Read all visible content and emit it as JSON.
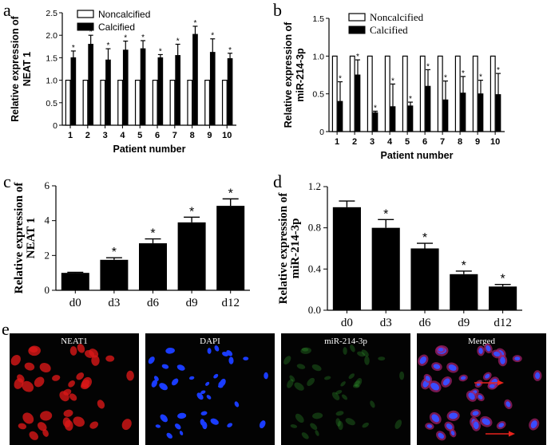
{
  "panels": {
    "a": {
      "letter": "a"
    },
    "b": {
      "letter": "b"
    },
    "c": {
      "letter": "c"
    },
    "d": {
      "letter": "d"
    },
    "e": {
      "letter": "e"
    }
  },
  "colors": {
    "noncalcified": "#ffffff",
    "calcified": "#000000",
    "axis": "#000000",
    "arrow": "#e8231c"
  },
  "chart_data": [
    {
      "id": "a",
      "type": "bar",
      "ylabel": "Relative expression of\nNEAT 1",
      "xlabel": "Patient number",
      "ylim": [
        0,
        2.5
      ],
      "yticks": [
        "0",
        "0.5",
        "1.0",
        "1.5",
        "2.0",
        "2.5"
      ],
      "ytick_values": [
        0,
        0.5,
        1.0,
        1.5,
        2.0,
        2.5
      ],
      "categories": [
        "1",
        "2",
        "3",
        "4",
        "5",
        "6",
        "7",
        "8",
        "9",
        "10"
      ],
      "legend": {
        "position": "top-left",
        "entries": [
          "Noncalcified",
          "Calcified"
        ]
      },
      "series": [
        {
          "name": "Noncalcified",
          "values": [
            1,
            1,
            1,
            1,
            1,
            1,
            1,
            1,
            1,
            1
          ],
          "errors": [
            0,
            0,
            0,
            0,
            0,
            0,
            0,
            0,
            0,
            0
          ]
        },
        {
          "name": "Calcified",
          "values": [
            1.5,
            1.8,
            1.45,
            1.67,
            1.7,
            1.5,
            1.55,
            2.02,
            1.62,
            1.48
          ],
          "errors": [
            0.15,
            0.2,
            0.25,
            0.2,
            0.18,
            0.07,
            0.25,
            0.18,
            0.3,
            0.12
          ]
        }
      ],
      "significance": [
        "*",
        "*",
        "*",
        "*",
        "*",
        "*",
        "*",
        "*",
        "*",
        "*"
      ]
    },
    {
      "id": "b",
      "type": "bar",
      "ylabel": "Relative expression of\nmiR-214-3p",
      "xlabel": "Patient number",
      "ylim": [
        0,
        1.5
      ],
      "yticks": [
        "0",
        "0.5",
        "1.0",
        "1.5"
      ],
      "ytick_values": [
        0,
        0.5,
        1.0,
        1.5
      ],
      "categories": [
        "1",
        "2",
        "3",
        "4",
        "5",
        "6",
        "7",
        "8",
        "9",
        "10"
      ],
      "legend": {
        "position": "top-right",
        "entries": [
          "Noncalcified",
          "Calcified"
        ]
      },
      "series": [
        {
          "name": "Noncalcified",
          "values": [
            1,
            1,
            1,
            1,
            1,
            1,
            1,
            1,
            1,
            1
          ],
          "errors": [
            0,
            0,
            0,
            0,
            0,
            0,
            0,
            0,
            0,
            0
          ]
        },
        {
          "name": "Calcified",
          "values": [
            0.4,
            0.75,
            0.25,
            0.33,
            0.34,
            0.6,
            0.42,
            0.51,
            0.5,
            0.49
          ],
          "errors": [
            0.26,
            0.2,
            0.02,
            0.3,
            0.05,
            0.22,
            0.25,
            0.22,
            0.18,
            0.28
          ]
        }
      ],
      "significance": [
        "*",
        "*",
        "*",
        "*",
        "*",
        "*",
        "*",
        "*",
        "*",
        "*"
      ]
    },
    {
      "id": "c",
      "type": "bar",
      "ylabel": "Relative expression of\nNEAT 1",
      "xlabel": "",
      "ylim": [
        0,
        6
      ],
      "yticks": [
        "0",
        "2",
        "4",
        "6"
      ],
      "ytick_values": [
        0,
        2,
        4,
        6
      ],
      "categories": [
        "d0",
        "d3",
        "d6",
        "d9",
        "d12"
      ],
      "values": [
        1.0,
        1.75,
        2.7,
        3.9,
        4.85
      ],
      "errors": [
        0.03,
        0.12,
        0.25,
        0.3,
        0.4
      ],
      "significance": [
        "",
        "*",
        "*",
        "*",
        "*"
      ]
    },
    {
      "id": "d",
      "type": "bar",
      "ylabel": "Relative expression of\nmiR-214-3p",
      "xlabel": "",
      "ylim": [
        0,
        1.2
      ],
      "yticks": [
        "0.0",
        "0.4",
        "0.8",
        "1.2"
      ],
      "ytick_values": [
        0,
        0.4,
        0.8,
        1.2
      ],
      "categories": [
        "d0",
        "d3",
        "d6",
        "d9",
        "d12"
      ],
      "values": [
        1.0,
        0.8,
        0.6,
        0.35,
        0.23
      ],
      "errors": [
        0.06,
        0.08,
        0.05,
        0.03,
        0.02
      ],
      "significance": [
        "",
        "*",
        "*",
        "*",
        "*"
      ]
    }
  ],
  "micrographs": [
    {
      "label": "NEAT1",
      "stain": "red"
    },
    {
      "label": "DAPI",
      "stain": "blue"
    },
    {
      "label": "miR-214-3p",
      "stain": "green"
    },
    {
      "label": "Merged",
      "stain": "merged"
    }
  ]
}
